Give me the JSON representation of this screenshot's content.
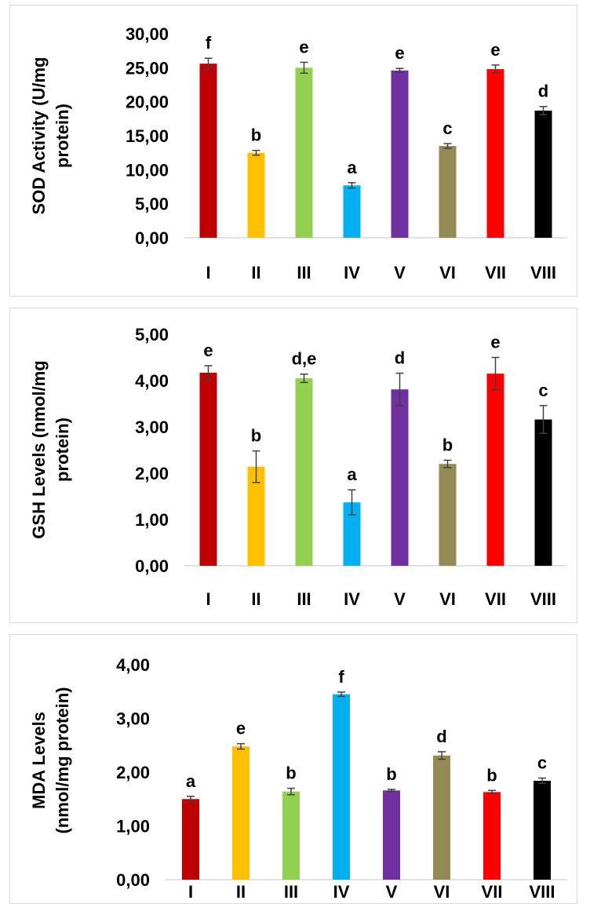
{
  "chart_data": [
    {
      "type": "bar",
      "ylabel_lines": [
        "SOD Activity (U/mg",
        "protein)"
      ],
      "categories": [
        "I",
        "II",
        "III",
        "IV",
        "V",
        "VI",
        "VII",
        "VIII"
      ],
      "values": [
        25.6,
        12.5,
        25.0,
        7.7,
        24.6,
        13.5,
        24.8,
        18.7
      ],
      "errors": [
        0.8,
        0.35,
        0.8,
        0.4,
        0.3,
        0.35,
        0.6,
        0.6
      ],
      "significance": [
        "f",
        "b",
        "e",
        "a",
        "e",
        "c",
        "e",
        "d"
      ],
      "yticks": [
        "0,00",
        "5,00",
        "10,00",
        "15,00",
        "20,00",
        "25,00",
        "30,00"
      ],
      "ylim": [
        0,
        30
      ],
      "grid": false,
      "legend": "none"
    },
    {
      "type": "bar",
      "ylabel_lines": [
        "GSH Levels (nmol/mg",
        "protein)"
      ],
      "categories": [
        "I",
        "II",
        "III",
        "IV",
        "V",
        "VI",
        "VII",
        "VIII"
      ],
      "values": [
        4.17,
        2.14,
        4.05,
        1.37,
        3.81,
        2.2,
        4.15,
        3.16
      ],
      "errors": [
        0.15,
        0.34,
        0.09,
        0.27,
        0.35,
        0.08,
        0.35,
        0.3
      ],
      "significance": [
        "e",
        "b",
        "d,e",
        "a",
        "d",
        "b",
        "e",
        "c"
      ],
      "yticks": [
        "0,00",
        "1,00",
        "2,00",
        "3,00",
        "4,00",
        "5,00"
      ],
      "ylim": [
        0,
        5
      ],
      "grid": false,
      "legend": "none"
    },
    {
      "type": "bar",
      "ylabel_lines": [
        "MDA Levels",
        "(nmol/mg protein)"
      ],
      "categories": [
        "I",
        "II",
        "III",
        "IV",
        "V",
        "VI",
        "VII",
        "VIII"
      ],
      "values": [
        1.5,
        2.48,
        1.64,
        3.45,
        1.66,
        2.31,
        1.63,
        1.84
      ],
      "errors": [
        0.05,
        0.05,
        0.06,
        0.04,
        0.02,
        0.07,
        0.03,
        0.05
      ],
      "significance": [
        "a",
        "e",
        "b",
        "f",
        "b",
        "d",
        "b",
        "c"
      ],
      "yticks": [
        "0,00",
        "1,00",
        "2,00",
        "3,00",
        "4,00"
      ],
      "ylim": [
        0,
        4
      ],
      "grid": false,
      "legend": "none"
    }
  ],
  "colors": [
    "#c00000",
    "#ffc000",
    "#92d050",
    "#00b0f0",
    "#7030a0",
    "#948a54",
    "#ff0000",
    "#000000"
  ],
  "axis_color": "#d9d9d9",
  "error_bar_color": "#404040"
}
